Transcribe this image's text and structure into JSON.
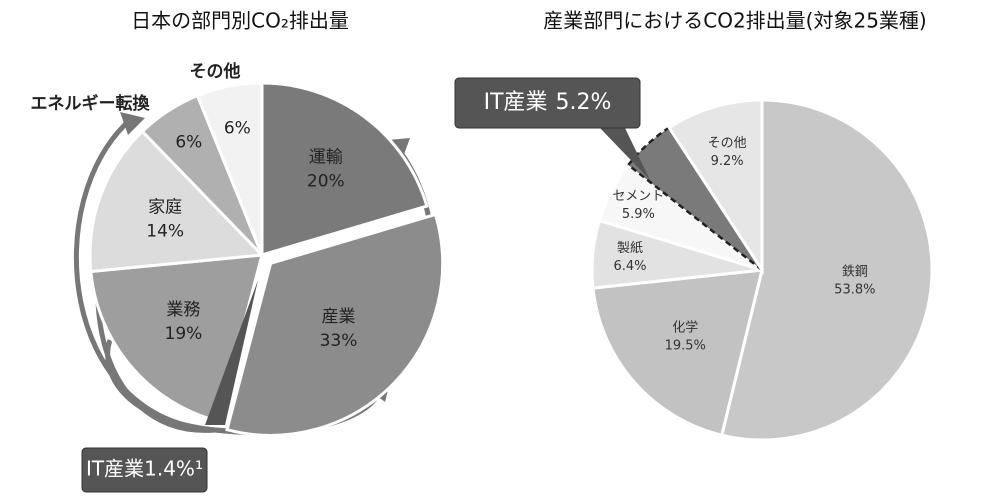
{
  "chart_data": [
    {
      "type": "pie",
      "title": "日本の部門別CO₂排出量",
      "categories": [
        "運輸",
        "産業",
        "業務",
        "家庭",
        "エネルギー転換",
        "その他"
      ],
      "values": [
        20,
        33,
        19,
        14,
        6,
        6
      ],
      "value_labels": [
        "20%",
        "33%",
        "19%",
        "14%",
        "6%",
        "6%"
      ],
      "colors": [
        "#7a7a7a",
        "#8c8c8c",
        "#9e9e9e",
        "#dcdcdc",
        "#b0b0b0",
        "#f2f2f2"
      ],
      "annotation": "IT産業1.4%¹"
    },
    {
      "type": "pie",
      "title": "産業部門におけるCO2排出量(対象25業種)",
      "categories": [
        "鉄鋼",
        "化学",
        "製紙",
        "セメント",
        "IT産業",
        "その他"
      ],
      "values": [
        53.8,
        19.5,
        6.4,
        5.9,
        5.2,
        9.2
      ],
      "value_labels": [
        "53.8%",
        "19.5%",
        "6.4%",
        "5.9%",
        "5.2%",
        "9.2%"
      ],
      "colors": [
        "#c8c8c8",
        "#c2c2c2",
        "#e2e2e2",
        "#f7f7f7",
        "#7a7a7a",
        "#e6e6e6"
      ]
    }
  ]
}
